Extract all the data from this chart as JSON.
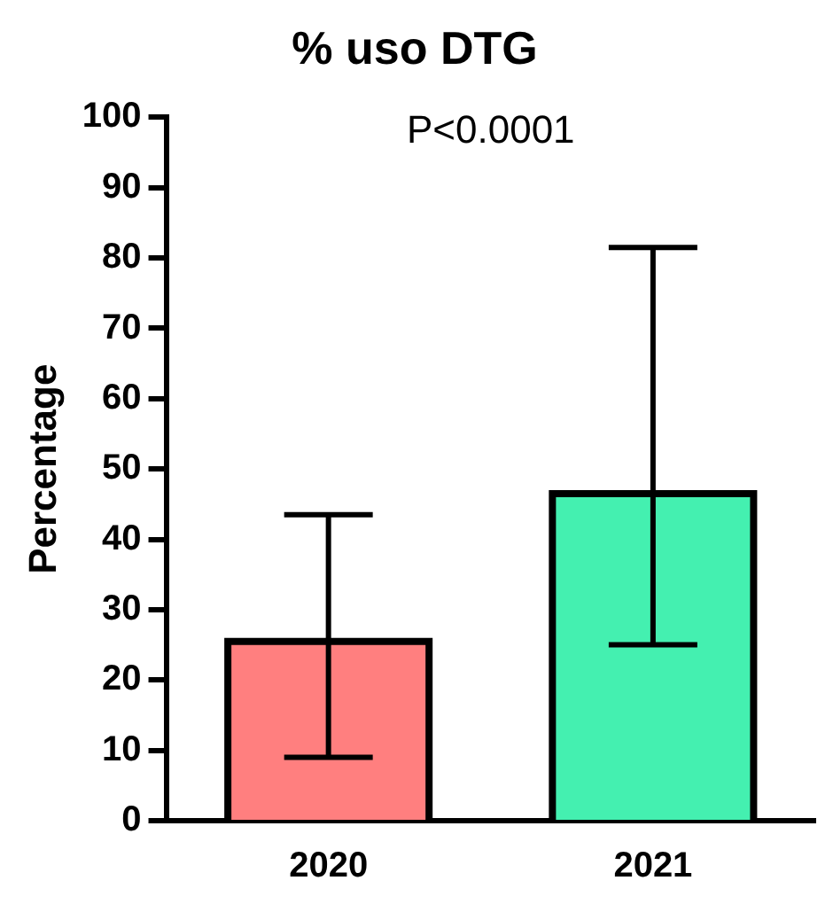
{
  "chart_data": {
    "type": "bar",
    "title": "% uso DTG",
    "ylabel": "Percentage",
    "categories": [
      "2020",
      "2021"
    ],
    "values": [
      25.5,
      46.5
    ],
    "colors": [
      "#ff7f7f",
      "#44f0b0"
    ],
    "errors": [
      [
        9,
        43.5
      ],
      [
        25,
        81.5
      ]
    ],
    "ylim": [
      0,
      100
    ],
    "yticks": [
      0,
      10,
      20,
      30,
      40,
      50,
      60,
      70,
      80,
      90,
      100
    ],
    "grid": false,
    "legend": false,
    "annotations": [
      "P<0.0001"
    ]
  }
}
